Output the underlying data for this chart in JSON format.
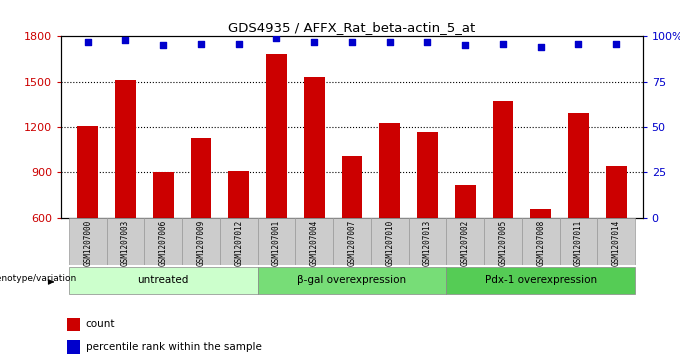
{
  "title": "GDS4935 / AFFX_Rat_beta-actin_5_at",
  "samples": [
    "GSM1207000",
    "GSM1207003",
    "GSM1207006",
    "GSM1207009",
    "GSM1207012",
    "GSM1207001",
    "GSM1207004",
    "GSM1207007",
    "GSM1207010",
    "GSM1207013",
    "GSM1207002",
    "GSM1207005",
    "GSM1207008",
    "GSM1207011",
    "GSM1207014"
  ],
  "counts": [
    1210,
    1510,
    905,
    1130,
    910,
    1680,
    1530,
    1010,
    1230,
    1170,
    820,
    1370,
    660,
    1290,
    940
  ],
  "percentile_ranks": [
    97,
    98,
    95,
    96,
    96,
    99,
    97,
    97,
    97,
    97,
    95,
    96,
    94,
    96,
    96
  ],
  "bar_color": "#cc0000",
  "dot_color": "#0000cc",
  "ylim_left": [
    600,
    1800
  ],
  "ylim_right": [
    0,
    100
  ],
  "yticks_left": [
    600,
    900,
    1200,
    1500,
    1800
  ],
  "yticks_right": [
    0,
    25,
    50,
    75,
    100
  ],
  "yticklabels_right": [
    "0",
    "25",
    "50",
    "75",
    "100%"
  ],
  "group_row_label": "genotype/variation",
  "legend_count_label": "count",
  "legend_pct_label": "percentile rank within the sample",
  "bar_width": 0.55,
  "background_color": "#ffffff",
  "axes_bg_color": "#ffffff",
  "group_defs": [
    {
      "label": "untreated",
      "start": 0,
      "end": 4,
      "color": "#ccffcc"
    },
    {
      "label": "β-gal overexpression",
      "start": 5,
      "end": 9,
      "color": "#77dd77"
    },
    {
      "label": "Pdx-1 overexpression",
      "start": 10,
      "end": 14,
      "color": "#55cc55"
    }
  ]
}
